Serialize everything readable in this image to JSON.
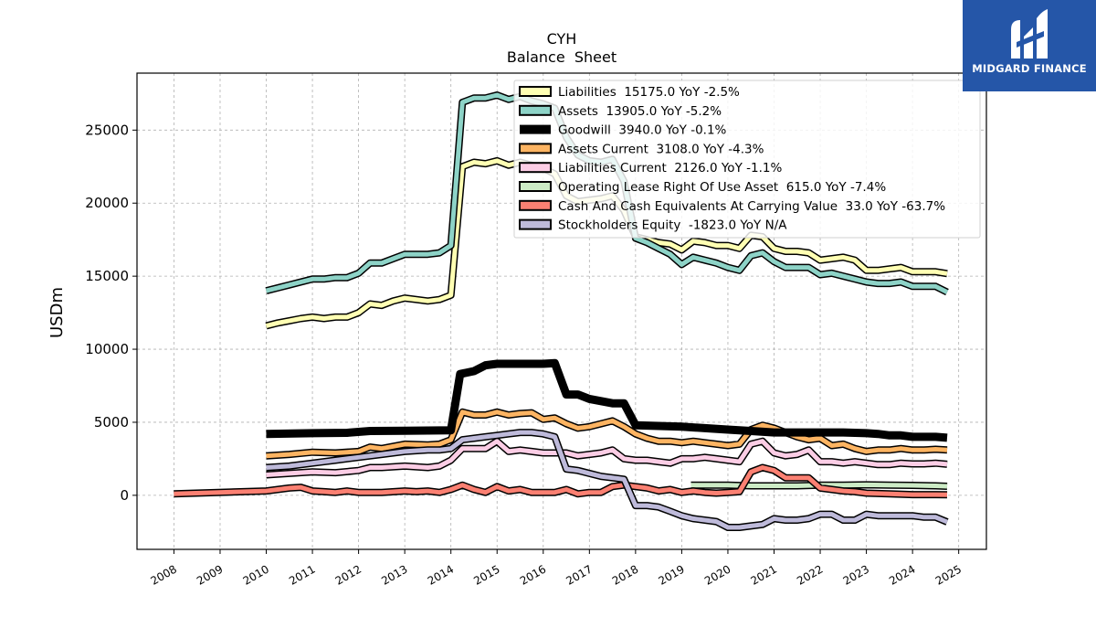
{
  "chart_data": {
    "type": "line",
    "title": "CYH",
    "subtitle": "Balance  Sheet",
    "ylabel": "USDm",
    "xlabel": "",
    "xlim": [
      2007.2,
      2025.6
    ],
    "ylim": [
      -3700,
      28900
    ],
    "xticks": [
      2008,
      2009,
      2010,
      2011,
      2012,
      2013,
      2014,
      2015,
      2016,
      2017,
      2018,
      2019,
      2020,
      2021,
      2022,
      2023,
      2024,
      2025
    ],
    "yticks": [
      0,
      5000,
      10000,
      15000,
      20000,
      25000
    ],
    "grid": true,
    "legend_position": "top-right",
    "series": [
      {
        "name": "Liabilities  15175.0 YoY -2.5%",
        "color": "#ffffb3",
        "width": 5,
        "x": [
          2010.0,
          2010.25,
          2010.5,
          2010.75,
          2011.0,
          2011.25,
          2011.5,
          2011.75,
          2012.0,
          2012.25,
          2012.5,
          2012.75,
          2013.0,
          2013.25,
          2013.5,
          2013.75,
          2014.0,
          2014.25,
          2014.5,
          2014.75,
          2015.0,
          2015.25,
          2015.5,
          2015.75,
          2016.0,
          2016.25,
          2016.5,
          2016.75,
          2017.0,
          2017.25,
          2017.5,
          2017.75,
          2018.0,
          2018.25,
          2018.5,
          2018.75,
          2019.0,
          2019.25,
          2019.5,
          2019.75,
          2020.0,
          2020.25,
          2020.5,
          2020.75,
          2021.0,
          2021.25,
          2021.5,
          2021.75,
          2022.0,
          2022.25,
          2022.5,
          2022.75,
          2023.0,
          2023.25,
          2023.5,
          2023.75,
          2024.0,
          2024.25,
          2024.5,
          2024.75
        ],
        "y": [
          11600,
          11800,
          11950,
          12100,
          12200,
          12100,
          12200,
          12200,
          12500,
          13100,
          13000,
          13300,
          13500,
          13400,
          13300,
          13400,
          13700,
          22500,
          22800,
          22700,
          22900,
          22600,
          22800,
          22600,
          22400,
          22000,
          20500,
          20100,
          20200,
          20300,
          20500,
          19500,
          17700,
          17500,
          17300,
          17200,
          16800,
          17400,
          17300,
          17100,
          17100,
          16900,
          17800,
          17700,
          16900,
          16700,
          16700,
          16600,
          16100,
          16200,
          16300,
          16100,
          15400,
          15400,
          15500,
          15600,
          15300,
          15300,
          15300,
          15175
        ]
      },
      {
        "name": "Assets  13905.0 YoY -5.2%",
        "color": "#8dd3c7",
        "width": 5,
        "x": [
          2010.0,
          2010.25,
          2010.5,
          2010.75,
          2011.0,
          2011.25,
          2011.5,
          2011.75,
          2012.0,
          2012.25,
          2012.5,
          2012.75,
          2013.0,
          2013.25,
          2013.5,
          2013.75,
          2014.0,
          2014.25,
          2014.5,
          2014.75,
          2015.0,
          2015.25,
          2015.5,
          2015.75,
          2016.0,
          2016.25,
          2016.5,
          2016.75,
          2017.0,
          2017.25,
          2017.5,
          2017.75,
          2018.0,
          2018.25,
          2018.5,
          2018.75,
          2019.0,
          2019.25,
          2019.5,
          2019.75,
          2020.0,
          2020.25,
          2020.5,
          2020.75,
          2021.0,
          2021.25,
          2021.5,
          2021.75,
          2022.0,
          2022.25,
          2022.5,
          2022.75,
          2023.0,
          2023.25,
          2023.5,
          2023.75,
          2024.0,
          2024.25,
          2024.5,
          2024.75
        ],
        "y": [
          14000,
          14200,
          14400,
          14600,
          14800,
          14800,
          14900,
          14900,
          15200,
          15900,
          15900,
          16200,
          16500,
          16500,
          16500,
          16600,
          17100,
          26900,
          27200,
          27200,
          27400,
          27100,
          27300,
          27000,
          26800,
          26500,
          24500,
          23300,
          22900,
          22800,
          23000,
          21500,
          17600,
          17300,
          16900,
          16500,
          15800,
          16300,
          16100,
          15900,
          15600,
          15400,
          16400,
          16600,
          16000,
          15600,
          15600,
          15600,
          15100,
          15200,
          15000,
          14800,
          14600,
          14500,
          14500,
          14600,
          14300,
          14300,
          14300,
          13905
        ]
      },
      {
        "name": "Goodwill  3940.0 YoY -0.1%",
        "color": "#000000",
        "width": 9,
        "x": [
          2010.0,
          2011.0,
          2011.75,
          2012.25,
          2013.0,
          2014.0,
          2014.2,
          2014.5,
          2014.75,
          2015.0,
          2015.5,
          2016.0,
          2016.25,
          2016.5,
          2016.75,
          2017.0,
          2017.5,
          2017.75,
          2018.0,
          2019.0,
          2019.5,
          2020.0,
          2020.5,
          2021.0,
          2021.5,
          2022.0,
          2022.5,
          2023.0,
          2023.25,
          2023.5,
          2023.75,
          2024.0,
          2024.5,
          2024.75
        ],
        "y": [
          4200,
          4250,
          4280,
          4400,
          4420,
          4450,
          8300,
          8500,
          8900,
          9000,
          9000,
          9000,
          9050,
          6900,
          6900,
          6600,
          6300,
          6300,
          4800,
          4700,
          4600,
          4500,
          4400,
          4300,
          4300,
          4300,
          4300,
          4250,
          4200,
          4100,
          4100,
          4000,
          4000,
          3940
        ]
      },
      {
        "name": "Assets Current  3108.0 YoY -4.3%",
        "color": "#fdb462",
        "width": 5,
        "x": [
          2010.0,
          2010.5,
          2011.0,
          2011.5,
          2012.0,
          2012.25,
          2012.5,
          2013.0,
          2013.5,
          2013.75,
          2014.0,
          2014.25,
          2014.5,
          2014.75,
          2015.0,
          2015.25,
          2015.5,
          2015.75,
          2016.0,
          2016.25,
          2016.5,
          2016.75,
          2017.0,
          2017.25,
          2017.5,
          2017.75,
          2018.0,
          2018.25,
          2018.5,
          2018.75,
          2019.0,
          2019.25,
          2019.5,
          2019.75,
          2020.0,
          2020.25,
          2020.5,
          2020.75,
          2021.0,
          2021.25,
          2021.5,
          2021.75,
          2022.0,
          2022.25,
          2022.5,
          2022.75,
          2023.0,
          2023.25,
          2023.5,
          2023.75,
          2024.0,
          2024.25,
          2024.5,
          2024.75
        ],
        "y": [
          2700,
          2800,
          2950,
          2900,
          3000,
          3300,
          3200,
          3500,
          3450,
          3500,
          3800,
          5700,
          5500,
          5500,
          5700,
          5500,
          5600,
          5650,
          5200,
          5300,
          4900,
          4600,
          4700,
          4900,
          5100,
          4700,
          4200,
          3900,
          3700,
          3700,
          3600,
          3700,
          3600,
          3500,
          3400,
          3500,
          4500,
          4800,
          4600,
          4300,
          4000,
          3800,
          3900,
          3400,
          3500,
          3200,
          3000,
          3100,
          3100,
          3200,
          3100,
          3100,
          3150,
          3108
        ]
      },
      {
        "name": "Liabilities Current  2126.0 YoY -1.1%",
        "color": "#fccde5",
        "width": 5,
        "x": [
          2010.0,
          2010.5,
          2011.0,
          2011.5,
          2012.0,
          2012.25,
          2012.5,
          2013.0,
          2013.5,
          2013.75,
          2014.0,
          2014.25,
          2014.5,
          2014.75,
          2015.0,
          2015.25,
          2015.5,
          2015.75,
          2016.0,
          2016.25,
          2016.5,
          2016.75,
          2017.0,
          2017.25,
          2017.5,
          2017.75,
          2018.0,
          2018.25,
          2018.5,
          2018.75,
          2019.0,
          2019.25,
          2019.5,
          2019.75,
          2020.0,
          2020.25,
          2020.5,
          2020.75,
          2021.0,
          2021.25,
          2021.5,
          2021.75,
          2022.0,
          2022.25,
          2022.5,
          2022.75,
          2023.0,
          2023.25,
          2023.5,
          2023.75,
          2024.0,
          2024.25,
          2024.5,
          2024.75
        ],
        "y": [
          1400,
          1500,
          1600,
          1550,
          1700,
          1900,
          1900,
          2000,
          1900,
          2000,
          2400,
          3200,
          3200,
          3200,
          3700,
          3000,
          3100,
          3000,
          2900,
          2900,
          2900,
          2700,
          2800,
          2900,
          3100,
          2500,
          2400,
          2400,
          2300,
          2200,
          2500,
          2500,
          2600,
          2500,
          2400,
          2300,
          3500,
          3700,
          2900,
          2700,
          2800,
          3100,
          2300,
          2300,
          2200,
          2300,
          2200,
          2100,
          2100,
          2200,
          2150,
          2150,
          2200,
          2126
        ]
      },
      {
        "name": "Operating Lease Right Of Use Asset  615.0 YoY -7.4%",
        "color": "#ccebc5",
        "width": 5,
        "x": [
          2019.2,
          2019.5,
          2020.0,
          2020.5,
          2021.0,
          2021.5,
          2022.0,
          2022.5,
          2023.0,
          2023.5,
          2024.0,
          2024.5,
          2024.75
        ],
        "y": [
          700,
          700,
          700,
          650,
          650,
          650,
          700,
          700,
          720,
          700,
          680,
          650,
          615
        ]
      },
      {
        "name": "Cash And Cash Equivalents At Carrying Value  33.0 YoY -63.7%",
        "color": "#fb8072",
        "width": 5,
        "x": [
          2008.0,
          2010.0,
          2010.5,
          2010.75,
          2011.0,
          2011.25,
          2011.5,
          2011.75,
          2012.0,
          2012.5,
          2013.0,
          2013.25,
          2013.5,
          2013.75,
          2014.0,
          2014.25,
          2014.5,
          2014.75,
          2015.0,
          2015.25,
          2015.5,
          2015.75,
          2016.0,
          2016.25,
          2016.5,
          2016.75,
          2017.0,
          2017.25,
          2017.5,
          2017.75,
          2018.0,
          2018.25,
          2018.5,
          2018.75,
          2019.0,
          2019.25,
          2019.5,
          2019.75,
          2020.0,
          2020.25,
          2020.5,
          2020.75,
          2021.0,
          2021.25,
          2021.5,
          2021.75,
          2022.0,
          2022.25,
          2022.5,
          2022.75,
          2023.0,
          2023.5,
          2024.0,
          2024.5,
          2024.75
        ],
        "y": [
          100,
          300,
          500,
          550,
          300,
          250,
          200,
          300,
          200,
          200,
          300,
          250,
          300,
          200,
          400,
          700,
          400,
          200,
          600,
          300,
          400,
          200,
          200,
          200,
          400,
          100,
          200,
          200,
          600,
          700,
          600,
          500,
          300,
          400,
          200,
          300,
          200,
          150,
          200,
          250,
          1600,
          1900,
          1700,
          1200,
          1200,
          1200,
          500,
          400,
          300,
          250,
          150,
          100,
          50,
          50,
          33
        ]
      },
      {
        "name": "Stockholders Equity  -1823.0 YoY N/A",
        "color": "#bebada",
        "width": 5,
        "x": [
          2010.0,
          2010.5,
          2011.0,
          2011.5,
          2012.0,
          2012.5,
          2013.0,
          2013.5,
          2013.75,
          2014.0,
          2014.25,
          2014.5,
          2014.75,
          2015.0,
          2015.25,
          2015.5,
          2015.75,
          2016.0,
          2016.25,
          2016.5,
          2016.75,
          2017.0,
          2017.25,
          2017.5,
          2017.75,
          2018.0,
          2018.25,
          2018.5,
          2018.75,
          2019.0,
          2019.25,
          2019.5,
          2019.75,
          2020.0,
          2020.25,
          2020.5,
          2020.75,
          2021.0,
          2021.25,
          2021.5,
          2021.75,
          2022.0,
          2022.25,
          2022.5,
          2022.75,
          2023.0,
          2023.25,
          2023.5,
          2023.75,
          2024.0,
          2024.25,
          2024.5,
          2024.75
        ],
        "y": [
          1900,
          2000,
          2200,
          2400,
          2600,
          2800,
          3000,
          3100,
          3100,
          3200,
          3800,
          3900,
          4000,
          4100,
          4200,
          4300,
          4300,
          4200,
          4000,
          1800,
          1700,
          1500,
          1300,
          1200,
          1100,
          -700,
          -700,
          -800,
          -1100,
          -1400,
          -1600,
          -1700,
          -1800,
          -2200,
          -2200,
          -2100,
          -2000,
          -1600,
          -1700,
          -1700,
          -1600,
          -1300,
          -1300,
          -1700,
          -1700,
          -1300,
          -1400,
          -1400,
          -1400,
          -1400,
          -1500,
          -1500,
          -1823
        ]
      }
    ]
  },
  "logo": {
    "text": "MIDGARD FINANCE"
  }
}
